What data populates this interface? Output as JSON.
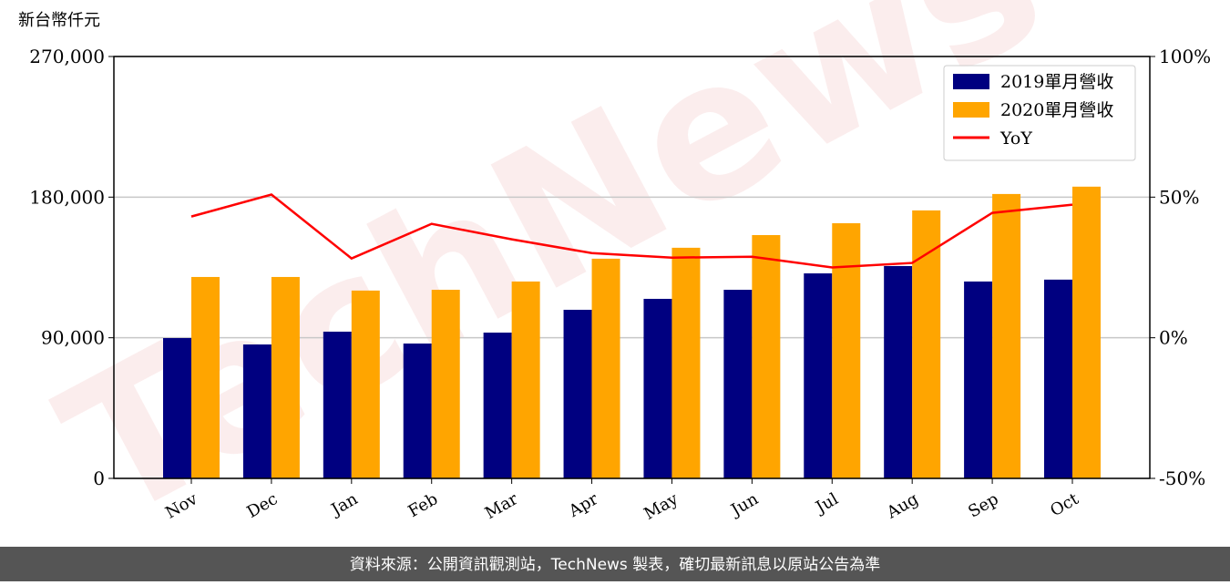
{
  "chart_data": {
    "type": "bar_line",
    "y_label": "新台幣仟元",
    "footer": "資料來源：公開資訊觀測站，TechNews 製表，確切最新訊息以原站公告為準",
    "watermark": "TechNews",
    "categories": [
      "Nov",
      "Dec",
      "Jan",
      "Feb",
      "Mar",
      "Apr",
      "May",
      "Jun",
      "Jul",
      "Aug",
      "Sep",
      "Oct"
    ],
    "series": [
      {
        "name": "2019單月營收",
        "color": "#000080",
        "type": "bar",
        "values": [
          89800,
          85700,
          93900,
          86300,
          93300,
          107900,
          114900,
          120700,
          131200,
          135900,
          126000,
          127200
        ]
      },
      {
        "name": "2020單月營收",
        "color": "#ffa500",
        "type": "bar",
        "values": [
          128900,
          128900,
          120200,
          120700,
          126000,
          140600,
          147600,
          155700,
          163300,
          171500,
          182000,
          186700
        ]
      },
      {
        "name": "YoY",
        "color": "#ff0000",
        "type": "line",
        "axis": "y2",
        "values": [
          43.1,
          50.9,
          28.2,
          40.5,
          35.0,
          30.1,
          28.5,
          28.8,
          25.0,
          26.6,
          44.4,
          47.3
        ]
      }
    ],
    "ylim": [
      0,
      270000
    ],
    "yticks": [
      0,
      {
        "value": 90000,
        "label": "90,000"
      },
      {
        "value": 180000,
        "label": "180,000"
      },
      {
        "value": 270000,
        "label": "270,000"
      }
    ],
    "y2lim": [
      -50,
      100
    ],
    "y2ticks": [
      {
        "value": -50,
        "label": "-50%"
      },
      {
        "value": 0,
        "label": "0%"
      },
      {
        "value": 50,
        "label": "50%"
      },
      {
        "value": 100,
        "label": "100%"
      }
    ],
    "grid": true,
    "legend": "upper right"
  }
}
